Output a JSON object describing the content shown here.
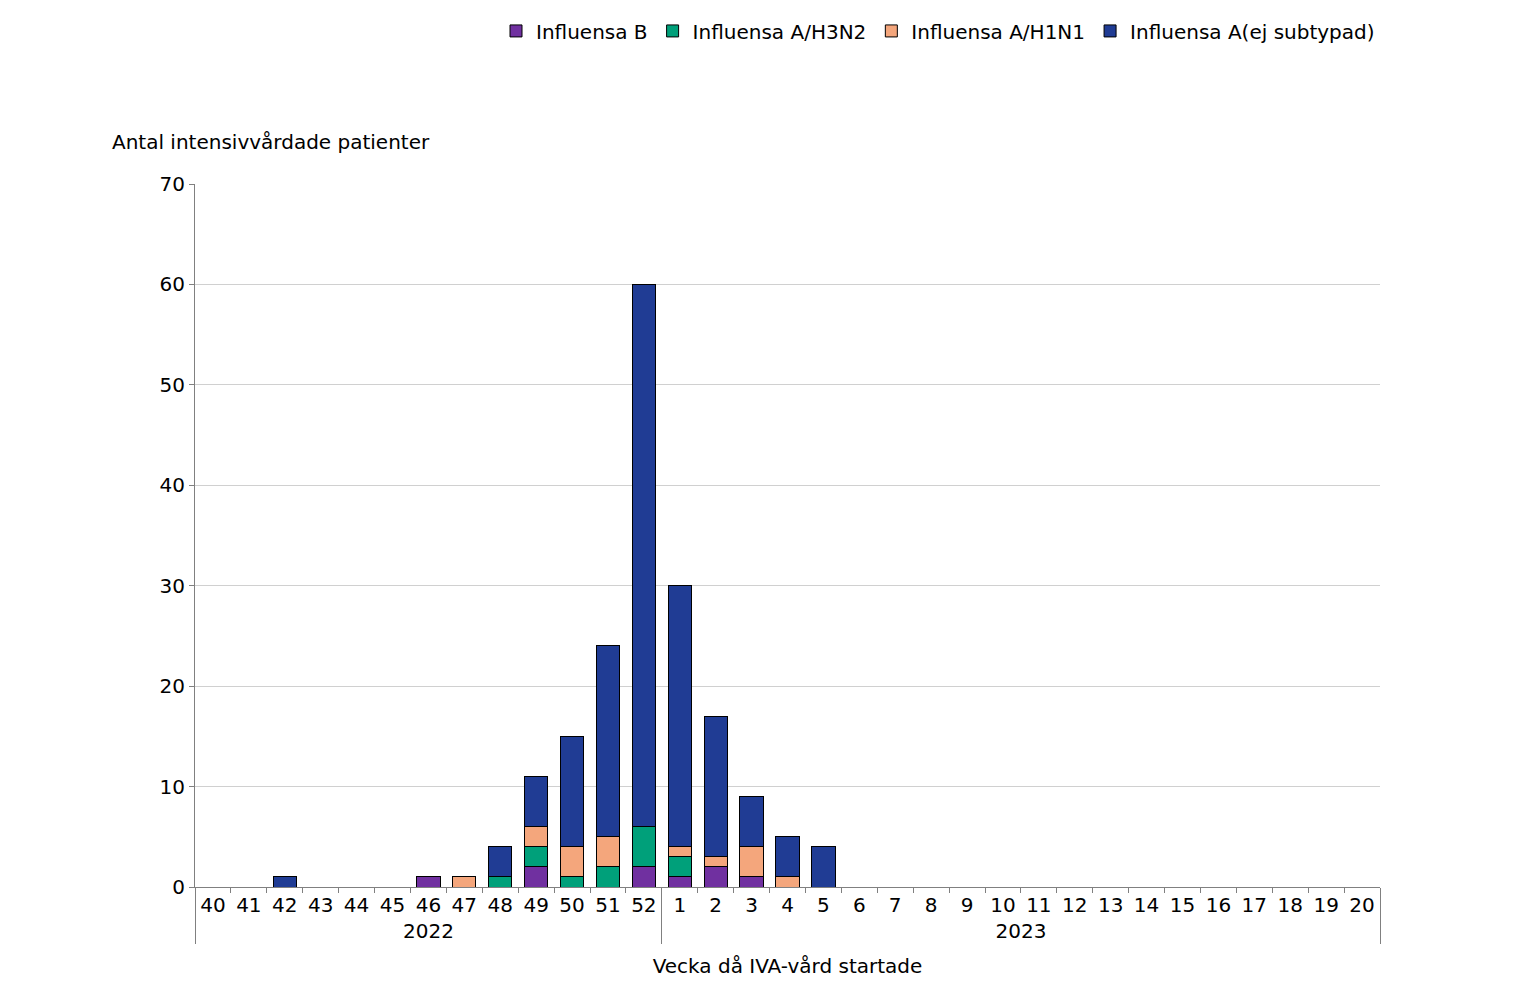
{
  "chart_data": {
    "type": "bar",
    "stacked": true,
    "grid": true,
    "legend": "top",
    "y_label": "Antal intensivvårdade patienter",
    "x_label": "Vecka då IVA-vård startade",
    "categories": [
      "40",
      "41",
      "42",
      "43",
      "44",
      "45",
      "46",
      "47",
      "48",
      "49",
      "50",
      "51",
      "52",
      "1",
      "2",
      "3",
      "4",
      "5",
      "6",
      "7",
      "8",
      "9",
      "10",
      "11",
      "12",
      "13",
      "14",
      "15",
      "16",
      "17",
      "18",
      "19",
      "20"
    ],
    "category_groups": [
      "2022",
      "2022",
      "2022",
      "2022",
      "2022",
      "2022",
      "2022",
      "2022",
      "2022",
      "2022",
      "2022",
      "2022",
      "2022",
      "2023",
      "2023",
      "2023",
      "2023",
      "2023",
      "2023",
      "2023",
      "2023",
      "2023",
      "2023",
      "2023",
      "2023",
      "2023",
      "2023",
      "2023",
      "2023",
      "2023",
      "2023",
      "2023",
      "2023"
    ],
    "ylim": [
      0,
      70
    ],
    "yticks": [
      0,
      10,
      20,
      30,
      40,
      50,
      60,
      70
    ],
    "series": [
      {
        "name": "Influensa B",
        "color": "#7030A0",
        "values": [
          0,
          0,
          0,
          0,
          0,
          0,
          1,
          0,
          0,
          2,
          0,
          0,
          2,
          1,
          2,
          1,
          0,
          0,
          0,
          0,
          0,
          0,
          0,
          0,
          0,
          0,
          0,
          0,
          0,
          0,
          0,
          0,
          0
        ]
      },
      {
        "name": "Influensa A/H3N2",
        "color": "#00A07A",
        "values": [
          0,
          0,
          0,
          0,
          0,
          0,
          0,
          0,
          1,
          2,
          1,
          2,
          4,
          2,
          0,
          0,
          0,
          0,
          0,
          0,
          0,
          0,
          0,
          0,
          0,
          0,
          0,
          0,
          0,
          0,
          0,
          0,
          0
        ]
      },
      {
        "name": "Influensa A/H1N1",
        "color": "#F4A67C",
        "values": [
          0,
          0,
          0,
          0,
          0,
          0,
          0,
          1,
          0,
          2,
          3,
          3,
          0,
          1,
          1,
          3,
          1,
          0,
          0,
          0,
          0,
          0,
          0,
          0,
          0,
          0,
          0,
          0,
          0,
          0,
          0,
          0,
          0
        ]
      },
      {
        "name": "Influensa A(ej subtypad)",
        "color": "#203C94",
        "values": [
          0,
          0,
          1,
          0,
          0,
          0,
          0,
          0,
          3,
          5,
          11,
          19,
          54,
          26,
          14,
          5,
          4,
          4,
          0,
          0,
          0,
          0,
          0,
          0,
          0,
          0,
          0,
          0,
          0,
          0,
          0,
          0,
          0
        ]
      }
    ]
  }
}
